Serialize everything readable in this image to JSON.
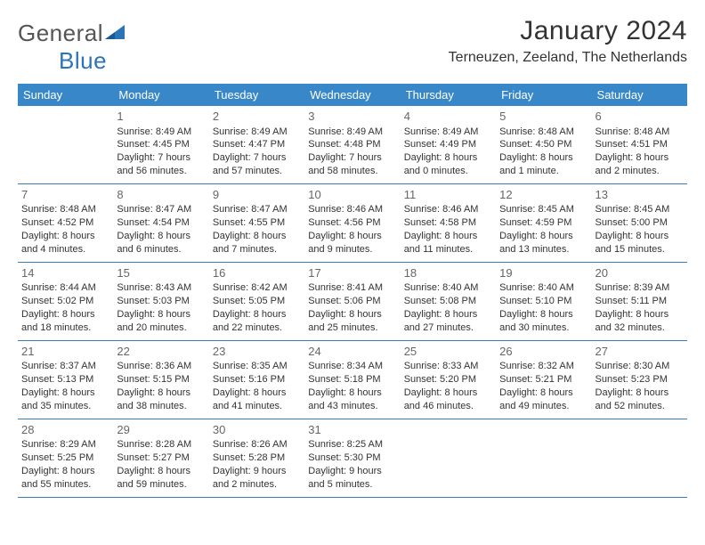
{
  "brand": {
    "part1": "General",
    "part2": "Blue"
  },
  "title": "January 2024",
  "location": "Terneuzen, Zeeland, The Netherlands",
  "colors": {
    "header_bg": "#3888c9",
    "header_text": "#ffffff",
    "row_border": "#3a7bb0",
    "daynum_color": "#666666",
    "body_text": "#333333",
    "brand_gray": "#555555",
    "brand_blue": "#2b74b8",
    "background": "#ffffff"
  },
  "typography": {
    "title_fontsize": 30,
    "location_fontsize": 16,
    "dayheader_fontsize": 13,
    "daynum_fontsize": 13,
    "cell_fontsize": 11,
    "logo_fontsize": 26
  },
  "day_names": [
    "Sunday",
    "Monday",
    "Tuesday",
    "Wednesday",
    "Thursday",
    "Friday",
    "Saturday"
  ],
  "weeks": [
    [
      null,
      {
        "n": "1",
        "sr": "Sunrise: 8:49 AM",
        "ss": "Sunset: 4:45 PM",
        "dl": "Daylight: 7 hours and 56 minutes."
      },
      {
        "n": "2",
        "sr": "Sunrise: 8:49 AM",
        "ss": "Sunset: 4:47 PM",
        "dl": "Daylight: 7 hours and 57 minutes."
      },
      {
        "n": "3",
        "sr": "Sunrise: 8:49 AM",
        "ss": "Sunset: 4:48 PM",
        "dl": "Daylight: 7 hours and 58 minutes."
      },
      {
        "n": "4",
        "sr": "Sunrise: 8:49 AM",
        "ss": "Sunset: 4:49 PM",
        "dl": "Daylight: 8 hours and 0 minutes."
      },
      {
        "n": "5",
        "sr": "Sunrise: 8:48 AM",
        "ss": "Sunset: 4:50 PM",
        "dl": "Daylight: 8 hours and 1 minute."
      },
      {
        "n": "6",
        "sr": "Sunrise: 8:48 AM",
        "ss": "Sunset: 4:51 PM",
        "dl": "Daylight: 8 hours and 2 minutes."
      }
    ],
    [
      {
        "n": "7",
        "sr": "Sunrise: 8:48 AM",
        "ss": "Sunset: 4:52 PM",
        "dl": "Daylight: 8 hours and 4 minutes."
      },
      {
        "n": "8",
        "sr": "Sunrise: 8:47 AM",
        "ss": "Sunset: 4:54 PM",
        "dl": "Daylight: 8 hours and 6 minutes."
      },
      {
        "n": "9",
        "sr": "Sunrise: 8:47 AM",
        "ss": "Sunset: 4:55 PM",
        "dl": "Daylight: 8 hours and 7 minutes."
      },
      {
        "n": "10",
        "sr": "Sunrise: 8:46 AM",
        "ss": "Sunset: 4:56 PM",
        "dl": "Daylight: 8 hours and 9 minutes."
      },
      {
        "n": "11",
        "sr": "Sunrise: 8:46 AM",
        "ss": "Sunset: 4:58 PM",
        "dl": "Daylight: 8 hours and 11 minutes."
      },
      {
        "n": "12",
        "sr": "Sunrise: 8:45 AM",
        "ss": "Sunset: 4:59 PM",
        "dl": "Daylight: 8 hours and 13 minutes."
      },
      {
        "n": "13",
        "sr": "Sunrise: 8:45 AM",
        "ss": "Sunset: 5:00 PM",
        "dl": "Daylight: 8 hours and 15 minutes."
      }
    ],
    [
      {
        "n": "14",
        "sr": "Sunrise: 8:44 AM",
        "ss": "Sunset: 5:02 PM",
        "dl": "Daylight: 8 hours and 18 minutes."
      },
      {
        "n": "15",
        "sr": "Sunrise: 8:43 AM",
        "ss": "Sunset: 5:03 PM",
        "dl": "Daylight: 8 hours and 20 minutes."
      },
      {
        "n": "16",
        "sr": "Sunrise: 8:42 AM",
        "ss": "Sunset: 5:05 PM",
        "dl": "Daylight: 8 hours and 22 minutes."
      },
      {
        "n": "17",
        "sr": "Sunrise: 8:41 AM",
        "ss": "Sunset: 5:06 PM",
        "dl": "Daylight: 8 hours and 25 minutes."
      },
      {
        "n": "18",
        "sr": "Sunrise: 8:40 AM",
        "ss": "Sunset: 5:08 PM",
        "dl": "Daylight: 8 hours and 27 minutes."
      },
      {
        "n": "19",
        "sr": "Sunrise: 8:40 AM",
        "ss": "Sunset: 5:10 PM",
        "dl": "Daylight: 8 hours and 30 minutes."
      },
      {
        "n": "20",
        "sr": "Sunrise: 8:39 AM",
        "ss": "Sunset: 5:11 PM",
        "dl": "Daylight: 8 hours and 32 minutes."
      }
    ],
    [
      {
        "n": "21",
        "sr": "Sunrise: 8:37 AM",
        "ss": "Sunset: 5:13 PM",
        "dl": "Daylight: 8 hours and 35 minutes."
      },
      {
        "n": "22",
        "sr": "Sunrise: 8:36 AM",
        "ss": "Sunset: 5:15 PM",
        "dl": "Daylight: 8 hours and 38 minutes."
      },
      {
        "n": "23",
        "sr": "Sunrise: 8:35 AM",
        "ss": "Sunset: 5:16 PM",
        "dl": "Daylight: 8 hours and 41 minutes."
      },
      {
        "n": "24",
        "sr": "Sunrise: 8:34 AM",
        "ss": "Sunset: 5:18 PM",
        "dl": "Daylight: 8 hours and 43 minutes."
      },
      {
        "n": "25",
        "sr": "Sunrise: 8:33 AM",
        "ss": "Sunset: 5:20 PM",
        "dl": "Daylight: 8 hours and 46 minutes."
      },
      {
        "n": "26",
        "sr": "Sunrise: 8:32 AM",
        "ss": "Sunset: 5:21 PM",
        "dl": "Daylight: 8 hours and 49 minutes."
      },
      {
        "n": "27",
        "sr": "Sunrise: 8:30 AM",
        "ss": "Sunset: 5:23 PM",
        "dl": "Daylight: 8 hours and 52 minutes."
      }
    ],
    [
      {
        "n": "28",
        "sr": "Sunrise: 8:29 AM",
        "ss": "Sunset: 5:25 PM",
        "dl": "Daylight: 8 hours and 55 minutes."
      },
      {
        "n": "29",
        "sr": "Sunrise: 8:28 AM",
        "ss": "Sunset: 5:27 PM",
        "dl": "Daylight: 8 hours and 59 minutes."
      },
      {
        "n": "30",
        "sr": "Sunrise: 8:26 AM",
        "ss": "Sunset: 5:28 PM",
        "dl": "Daylight: 9 hours and 2 minutes."
      },
      {
        "n": "31",
        "sr": "Sunrise: 8:25 AM",
        "ss": "Sunset: 5:30 PM",
        "dl": "Daylight: 9 hours and 5 minutes."
      },
      null,
      null,
      null
    ]
  ]
}
